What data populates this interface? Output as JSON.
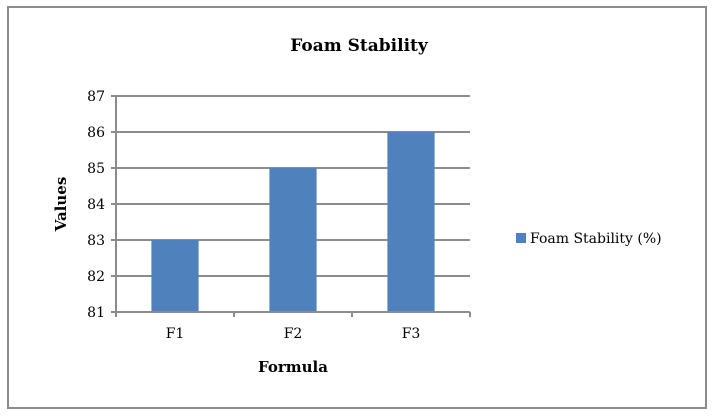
{
  "chart_data": {
    "type": "bar",
    "title": "Foam Stability",
    "xlabel": "Formula",
    "ylabel": "Values",
    "categories": [
      "F1",
      "F2",
      "F3"
    ],
    "series": [
      {
        "name": "Foam Stability (%)",
        "values": [
          83,
          85,
          86
        ],
        "color": "#4f81bd"
      }
    ],
    "ylim": [
      81,
      87
    ],
    "yticks": [
      81,
      82,
      83,
      84,
      85,
      86,
      87
    ],
    "grid": true,
    "legend": "right"
  }
}
